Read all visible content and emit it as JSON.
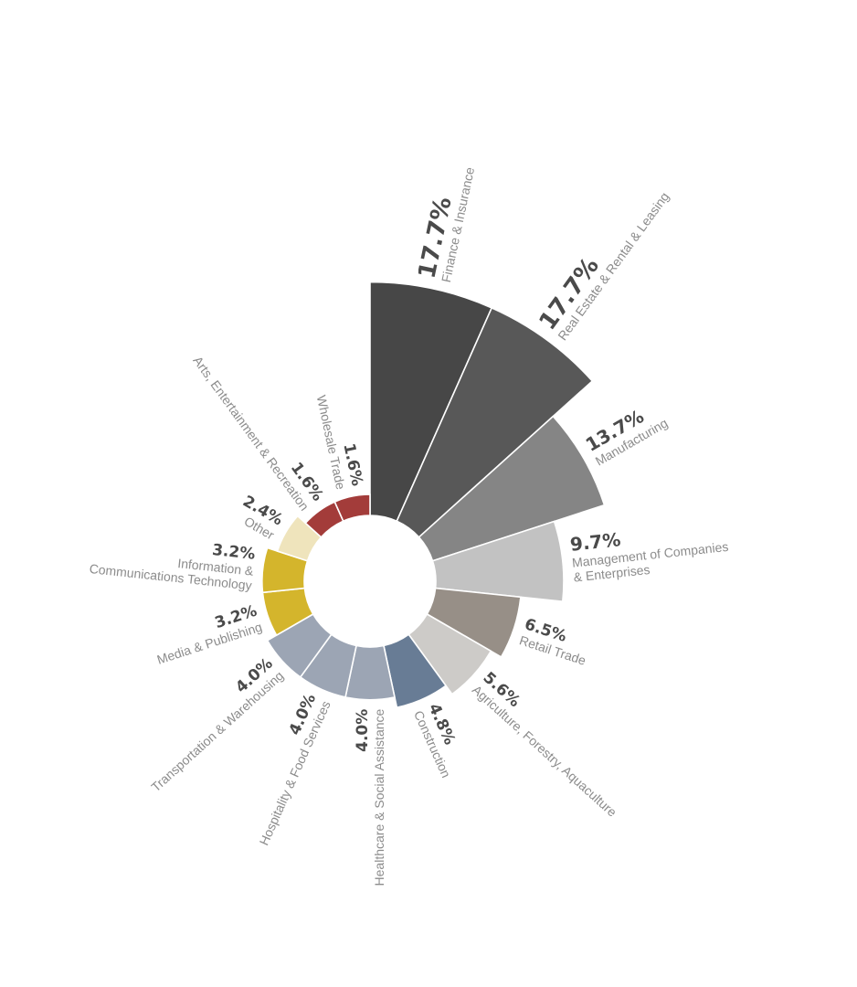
{
  "chart_data": {
    "type": "polar-area",
    "title": "",
    "legend": "none",
    "grid": false,
    "slices": [
      {
        "label": [
          "Finance & Insurance"
        ],
        "value": 17.7,
        "pct_label": "17.7%",
        "color": "#474747"
      },
      {
        "label": [
          "Real Estate & Rental & Leasing"
        ],
        "value": 17.7,
        "pct_label": "17.7%",
        "color": "#585858"
      },
      {
        "label": [
          "Manufacturing"
        ],
        "value": 13.7,
        "pct_label": "13.7%",
        "color": "#858585"
      },
      {
        "label": [
          "Management of Companies",
          "& Enterprises"
        ],
        "value": 9.7,
        "pct_label": "9.7%",
        "color": "#c2c2c2"
      },
      {
        "label": [
          "Retail Trade"
        ],
        "value": 6.5,
        "pct_label": "6.5%",
        "color": "#978f87"
      },
      {
        "label": [
          "Agriculture, Forestry, Aquaculture"
        ],
        "value": 5.6,
        "pct_label": "5.6%",
        "color": "#cdcbc8"
      },
      {
        "label": [
          "Construction"
        ],
        "value": 4.8,
        "pct_label": "4.8%",
        "color": "#687c95"
      },
      {
        "label": [
          "Healthcare & Social Assistance"
        ],
        "value": 4.0,
        "pct_label": "4.0%",
        "color": "#9ca5b4"
      },
      {
        "label": [
          "Hospitality & Food Services"
        ],
        "value": 4.0,
        "pct_label": "4.0%",
        "color": "#9ca5b4"
      },
      {
        "label": [
          "Transportation & Warehousing"
        ],
        "value": 4.0,
        "pct_label": "4.0%",
        "color": "#9ca5b4"
      },
      {
        "label": [
          "Media & Publishing"
        ],
        "value": 3.2,
        "pct_label": "3.2%",
        "color": "#d4b52c"
      },
      {
        "label": [
          "Information &",
          "Communications Technology"
        ],
        "value": 3.2,
        "pct_label": "3.2%",
        "color": "#d4b52c"
      },
      {
        "label": [
          "Other"
        ],
        "value": 2.4,
        "pct_label": "2.4%",
        "color": "#efe4bc"
      },
      {
        "label": [
          "Arts, Entertainment & Recreation"
        ],
        "value": 1.6,
        "pct_label": "1.6%",
        "color": "#a33c3a"
      },
      {
        "label": [
          "Wholesale Trade"
        ],
        "value": 1.6,
        "pct_label": "1.6%",
        "color": "#a33c3a"
      }
    ]
  }
}
